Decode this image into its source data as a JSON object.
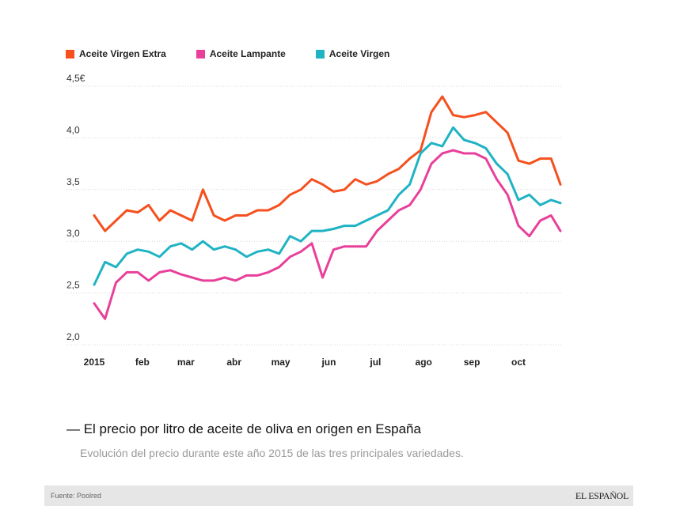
{
  "chart_data": {
    "type": "line",
    "title": "",
    "xlabel": "",
    "ylabel": "",
    "ylim": [
      2.0,
      4.5
    ],
    "xlim": [
      "2015-01-01",
      "2015-10-28"
    ],
    "grid": true,
    "legend_placement": "top-left",
    "y_ticks": [
      {
        "value": 4.5,
        "label": "4,5€"
      },
      {
        "value": 4.0,
        "label": "4,0"
      },
      {
        "value": 3.5,
        "label": "3,5"
      },
      {
        "value": 3.0,
        "label": "3,0"
      },
      {
        "value": 2.5,
        "label": "2,5"
      },
      {
        "value": 2.0,
        "label": "2,0"
      }
    ],
    "x_ticks": [
      {
        "date": "2015-01-01",
        "label": "2015"
      },
      {
        "date": "2015-02-01",
        "label": "feb"
      },
      {
        "date": "2015-03-01",
        "label": "mar"
      },
      {
        "date": "2015-04-01",
        "label": "abr"
      },
      {
        "date": "2015-05-01",
        "label": "may"
      },
      {
        "date": "2015-06-01",
        "label": "jun"
      },
      {
        "date": "2015-07-01",
        "label": "jul"
      },
      {
        "date": "2015-08-01",
        "label": "ago"
      },
      {
        "date": "2015-09-01",
        "label": "sep"
      },
      {
        "date": "2015-10-01",
        "label": "oct"
      }
    ],
    "x": [
      "2015-01-01",
      "2015-01-08",
      "2015-01-15",
      "2015-01-22",
      "2015-01-29",
      "2015-02-05",
      "2015-02-12",
      "2015-02-19",
      "2015-02-26",
      "2015-03-05",
      "2015-03-12",
      "2015-03-19",
      "2015-03-26",
      "2015-04-02",
      "2015-04-09",
      "2015-04-16",
      "2015-04-23",
      "2015-04-30",
      "2015-05-07",
      "2015-05-14",
      "2015-05-21",
      "2015-05-28",
      "2015-06-04",
      "2015-06-11",
      "2015-06-18",
      "2015-06-25",
      "2015-07-02",
      "2015-07-09",
      "2015-07-16",
      "2015-07-23",
      "2015-07-30",
      "2015-08-06",
      "2015-08-13",
      "2015-08-20",
      "2015-08-27",
      "2015-09-03",
      "2015-09-10",
      "2015-09-17",
      "2015-09-24",
      "2015-10-01",
      "2015-10-08",
      "2015-10-15",
      "2015-10-22",
      "2015-10-28"
    ],
    "series": [
      {
        "name": "Aceite Virgen Extra",
        "color": "#f5501e",
        "values": [
          3.25,
          3.1,
          3.2,
          3.3,
          3.28,
          3.35,
          3.2,
          3.3,
          3.25,
          3.2,
          3.5,
          3.25,
          3.2,
          3.25,
          3.25,
          3.3,
          3.3,
          3.35,
          3.45,
          3.5,
          3.6,
          3.55,
          3.48,
          3.5,
          3.6,
          3.55,
          3.58,
          3.65,
          3.7,
          3.8,
          3.88,
          4.25,
          4.4,
          4.22,
          4.2,
          4.22,
          4.25,
          4.15,
          4.05,
          3.78,
          3.75,
          3.8,
          3.8,
          3.55
        ]
      },
      {
        "name": "Aceite Lampante",
        "color": "#e8409a",
        "values": [
          2.4,
          2.25,
          2.6,
          2.7,
          2.7,
          2.62,
          2.7,
          2.72,
          2.68,
          2.65,
          2.62,
          2.62,
          2.65,
          2.62,
          2.67,
          2.67,
          2.7,
          2.75,
          2.85,
          2.9,
          2.98,
          2.65,
          2.92,
          2.95,
          2.95,
          2.95,
          3.1,
          3.2,
          3.3,
          3.35,
          3.5,
          3.75,
          3.85,
          3.88,
          3.85,
          3.85,
          3.8,
          3.6,
          3.45,
          3.15,
          3.05,
          3.2,
          3.25,
          3.1
        ]
      },
      {
        "name": "Aceite Virgen",
        "color": "#1fb3c4",
        "values": [
          2.58,
          2.8,
          2.75,
          2.88,
          2.92,
          2.9,
          2.85,
          2.95,
          2.98,
          2.92,
          3.0,
          2.92,
          2.95,
          2.92,
          2.85,
          2.9,
          2.92,
          2.88,
          3.05,
          3.0,
          3.1,
          3.1,
          3.12,
          3.15,
          3.15,
          3.2,
          3.25,
          3.3,
          3.45,
          3.55,
          3.85,
          3.95,
          3.92,
          4.1,
          3.98,
          3.95,
          3.9,
          3.75,
          3.65,
          3.4,
          3.45,
          3.35,
          3.4,
          3.37
        ]
      }
    ]
  },
  "caption": {
    "title": "— El precio por litro de aceite de oliva en origen en España",
    "subtitle": "Evolución del precio durante este año 2015 de las tres principales variedades."
  },
  "footer": {
    "source": "Fuente: Poolred",
    "logo": "EL ESPAÑOL"
  }
}
